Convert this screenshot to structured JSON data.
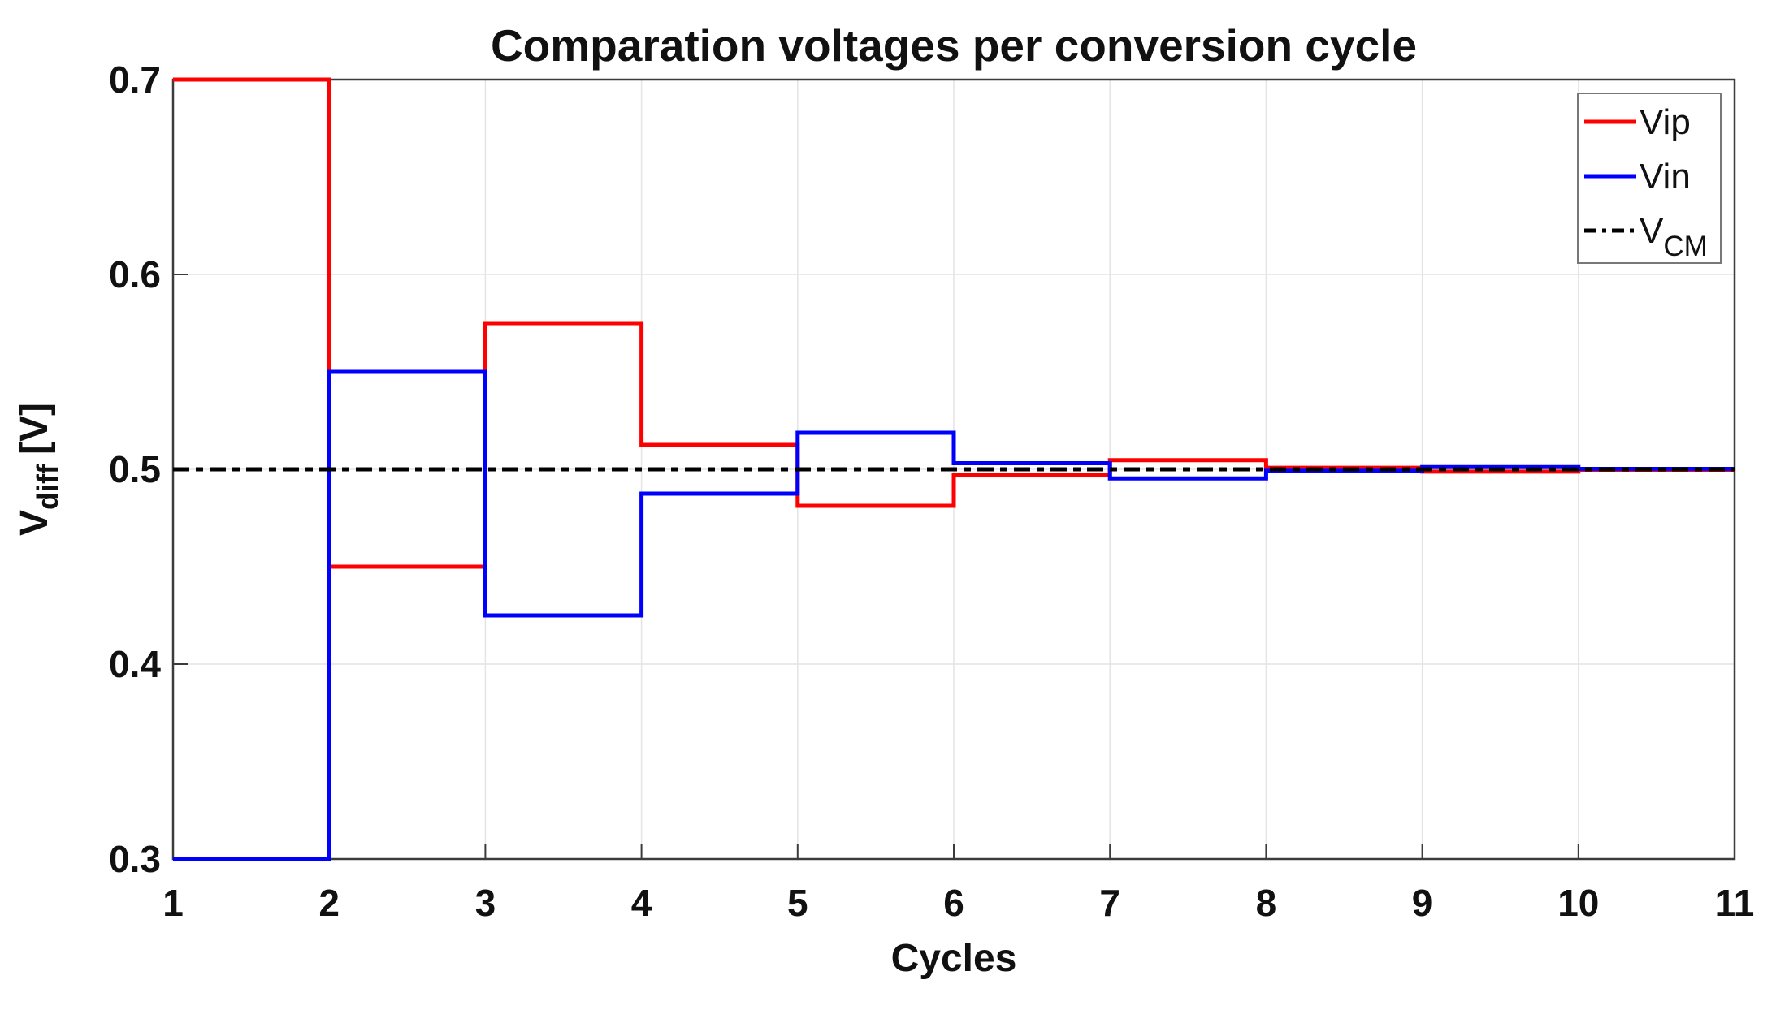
{
  "figure": {
    "title": "Comparation voltages per conversion cycle",
    "xlabel": "Cycles",
    "ylabel": {
      "base": "V",
      "sub": "diff",
      "unit": "[V]"
    }
  },
  "axes": {
    "xtick_labels": [
      "1",
      "2",
      "3",
      "4",
      "5",
      "6",
      "7",
      "8",
      "9",
      "10",
      "11"
    ],
    "ytick_labels": [
      "0.3",
      "0.4",
      "0.5",
      "0.6",
      "0.7"
    ]
  },
  "legend": {
    "items": [
      {
        "label": "Vip",
        "sub": "",
        "color": "#ff0000",
        "dash": "solid"
      },
      {
        "label": "Vin",
        "sub": "",
        "color": "#0000ff",
        "dash": "solid"
      },
      {
        "label": "V",
        "sub": "CM",
        "color": "#000000",
        "dash": "dashdot"
      }
    ]
  },
  "style": {
    "background": "#ffffff",
    "grid_color": "#e4e4e4",
    "axis_color": "#3c3c3c",
    "legend_border_color": "#787878",
    "vip_color": "#ff0000",
    "vin_color": "#0000ff",
    "vcm_color": "#000000"
  },
  "chart_data": {
    "type": "line",
    "mode": "step-post",
    "title": "Comparation voltages per conversion cycle",
    "xlabel": "Cycles",
    "ylabel": "V_diff [V]",
    "xlim": [
      1,
      11
    ],
    "ylim": [
      0.3,
      0.7
    ],
    "xticks": [
      1,
      2,
      3,
      4,
      5,
      6,
      7,
      8,
      9,
      10,
      11
    ],
    "yticks": [
      0.3,
      0.4,
      0.5,
      0.6,
      0.7
    ],
    "grid": true,
    "legend_position": "northeast",
    "step_edges": [
      1,
      2,
      3,
      4,
      5,
      6,
      7,
      8,
      9,
      10,
      11
    ],
    "series": [
      {
        "name": "Vip",
        "kind": "step",
        "color": "#ff0000",
        "linestyle": "solid",
        "levels": [
          0.7,
          0.45,
          0.575,
          0.5125,
          0.48125,
          0.496875,
          0.5046875,
          0.50078125,
          0.498828125,
          0.4998046875
        ]
      },
      {
        "name": "Vin",
        "kind": "step",
        "color": "#0000ff",
        "linestyle": "solid",
        "levels": [
          0.3,
          0.55,
          0.425,
          0.4875,
          0.51875,
          0.503125,
          0.4953125,
          0.49921875,
          0.501171875,
          0.5001953125
        ]
      },
      {
        "name": "V_CM",
        "kind": "constant",
        "color": "#000000",
        "linestyle": "dashdot",
        "level": 0.5
      }
    ]
  }
}
